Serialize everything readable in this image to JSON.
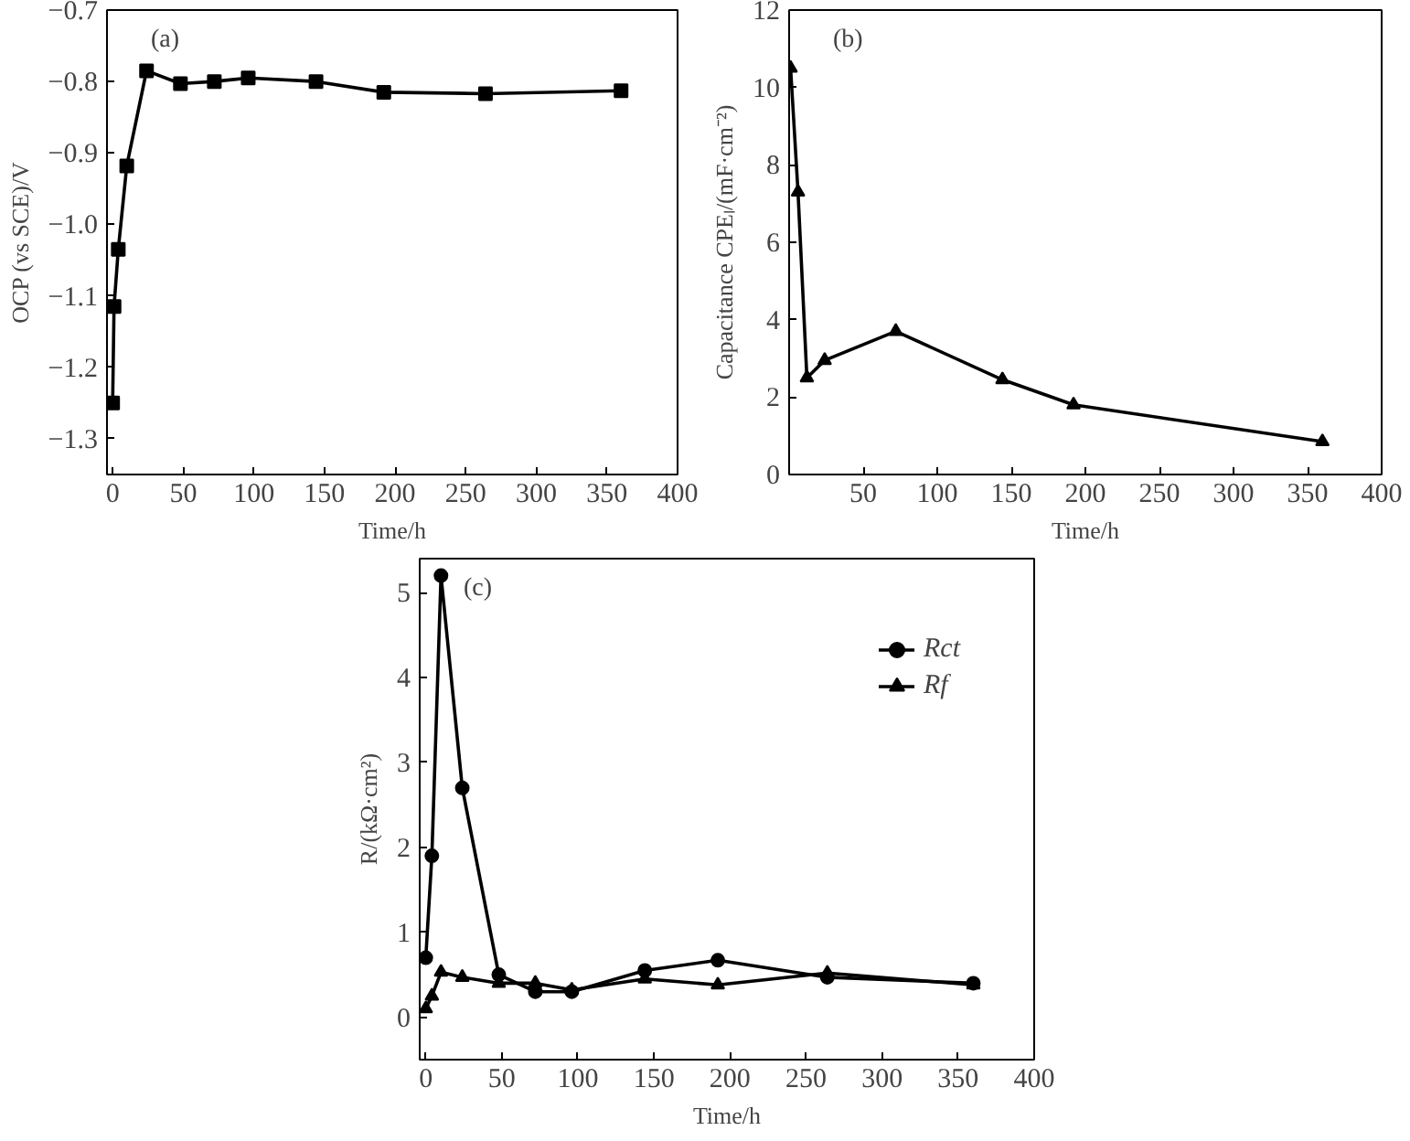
{
  "chart_data": [
    {
      "type": "line",
      "title": "(a)",
      "xlabel": "Time/h",
      "ylabel": "OCP (vs SCE)/V",
      "marker": "square",
      "grid": false,
      "legend": false,
      "x": [
        0,
        1,
        4,
        10,
        24,
        48,
        72,
        96,
        144,
        192,
        264,
        360
      ],
      "series": [
        {
          "color": "#000000",
          "values": [
            -1.25,
            -1.115,
            -1.035,
            -0.918,
            -0.785,
            -0.803,
            -0.8,
            -0.795,
            -0.8,
            -0.815,
            -0.817,
            -0.813
          ]
        }
      ],
      "xlim": [
        -4,
        400
      ],
      "xticks": [
        0,
        50,
        100,
        150,
        200,
        250,
        300,
        350,
        400
      ],
      "ylim": [
        -1.35,
        -0.7
      ],
      "yticks": [
        {
          "value": -1.3,
          "label": "−1.3"
        },
        {
          "value": -1.2,
          "label": "−1.2"
        },
        {
          "value": -1.1,
          "label": "−1.1"
        },
        {
          "value": -1.0,
          "label": "−1.0"
        },
        {
          "value": -0.9,
          "label": "−0.9"
        },
        {
          "value": -0.8,
          "label": "−0.8"
        },
        {
          "value": -0.7,
          "label": "−0.7"
        }
      ]
    },
    {
      "type": "line",
      "title": "(b)",
      "xlabel": "Time/h",
      "ylabel": "Capacitance CPEₗ/(mF·cm⁻²)",
      "marker": "triangle",
      "grid": false,
      "legend": false,
      "x": [
        1,
        6,
        12,
        24,
        72,
        144,
        192,
        360
      ],
      "series": [
        {
          "color": "#000000",
          "values": [
            10.5,
            7.3,
            2.5,
            2.95,
            3.7,
            2.45,
            1.8,
            0.85
          ]
        }
      ],
      "xlim": [
        0,
        400
      ],
      "xticks": [
        50,
        100,
        150,
        200,
        250,
        300,
        350,
        400
      ],
      "ylim": [
        0,
        12
      ],
      "yticks": [
        0,
        2,
        4,
        6,
        8,
        10,
        12
      ]
    },
    {
      "type": "line",
      "title": "(c)",
      "xlabel": "Time/h",
      "ylabel": "R/(kΩ·cm²)",
      "grid": false,
      "legend": "top right",
      "x": [
        0,
        4,
        10,
        24,
        48,
        72,
        96,
        144,
        192,
        264,
        360
      ],
      "series": [
        {
          "name": "Rct",
          "color": "#000000",
          "marker": "circle",
          "values": [
            0.7,
            1.9,
            5.2,
            2.7,
            0.5,
            0.3,
            0.3,
            0.55,
            0.67,
            0.47,
            0.4
          ]
        },
        {
          "name": "Rf",
          "color": "#000000",
          "marker": "triangle",
          "values": [
            0.1,
            0.25,
            0.53,
            0.47,
            0.4,
            0.4,
            0.32,
            0.45,
            0.38,
            0.52,
            0.38
          ]
        }
      ],
      "xlim": [
        -4,
        400
      ],
      "xticks": [
        0,
        50,
        100,
        150,
        200,
        250,
        300,
        350,
        400
      ],
      "ylim": [
        -0.5,
        5.4
      ],
      "yticks": [
        0,
        1,
        2,
        3,
        4,
        5
      ]
    }
  ]
}
